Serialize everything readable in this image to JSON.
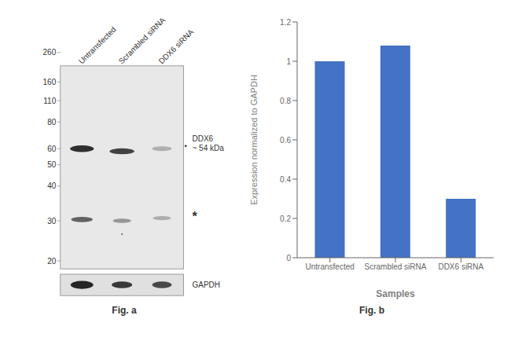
{
  "chart_data": [
    {
      "type": "blot",
      "title": "Fig. a",
      "categories": [
        "Untransfected",
        "Scrambled siRNA",
        "DDX6 siRNA"
      ],
      "annotations": [
        "260",
        "160",
        "110",
        "80",
        "60",
        "50",
        "40",
        "30",
        "20",
        "DDX6\n~ 54 kDa",
        "*",
        "GAPDH"
      ]
    },
    {
      "type": "bar",
      "title": "Fig. b",
      "categories": [
        "Untransfected",
        "Scrambled siRNA",
        "DDX6 siRNA"
      ],
      "values": [
        1.0,
        1.08,
        0.3
      ],
      "color": "#4472C4",
      "xlabel": "Samples",
      "ylabel": "Expression normalized to GAPDH",
      "ylim": [
        0,
        1.2
      ],
      "yticks": [
        0,
        0.2,
        0.4,
        0.6,
        0.8,
        1.0,
        1.2
      ],
      "grid": false
    }
  ]
}
